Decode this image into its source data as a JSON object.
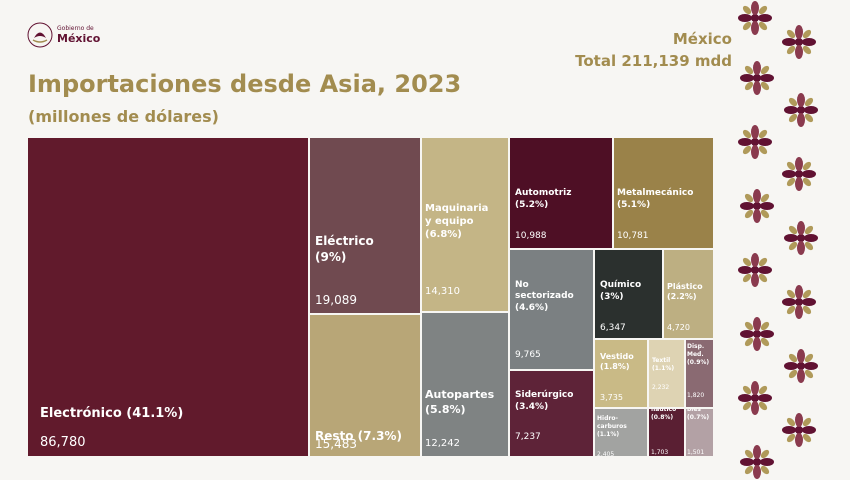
{
  "header": {
    "logo_small": "Gobierno de",
    "logo_big": "México",
    "title": "Importaciones desde Asia, 2023",
    "subtitle": "(millones de dólares)",
    "region": "México",
    "total": "Total 211,139 mdd"
  },
  "chart_data": {
    "type": "treemap",
    "title": "Importaciones desde Asia, 2023",
    "subtitle": "(millones de dólares)",
    "total": 211139,
    "items": [
      {
        "label": "Electrónico (41.1%)",
        "value": 86780,
        "value_text": "86,780",
        "color": "#611a2c"
      },
      {
        "label": "Eléctrico\n(9%)",
        "value": 19089,
        "value_text": "19,089",
        "color": "#704a50"
      },
      {
        "label": "Resto (7.3%)",
        "value": 15483,
        "value_text": "15,483",
        "color": "#b8a677"
      },
      {
        "label": "Maquinaria\ny equipo\n(6.8%)",
        "value": 14310,
        "value_text": "14,310",
        "color": "#c4b586"
      },
      {
        "label": "Autopartes\n(5.8%)",
        "value": 12242,
        "value_text": "12,242",
        "color": "#7f8383"
      },
      {
        "label": "Automotriz\n(5.2%)",
        "value": 10988,
        "value_text": "10,988",
        "color": "#4e0f25"
      },
      {
        "label": "Metalmecánico\n(5.1%)",
        "value": 10781,
        "value_text": "10,781",
        "color": "#9a8249"
      },
      {
        "label": "No\nsectorizado\n(4.6%)",
        "value": 9765,
        "value_text": "9,765",
        "color": "#7b8082"
      },
      {
        "label": "Siderúrgico\n(3.4%)",
        "value": 7237,
        "value_text": "7,237",
        "color": "#5e2338"
      },
      {
        "label": "Químico\n(3%)",
        "value": 6347,
        "value_text": "6,347",
        "color": "#2b302e"
      },
      {
        "label": "Plástico\n(2.2%)",
        "value": 4720,
        "value_text": "4,720",
        "color": "#bdaf82"
      },
      {
        "label": "Vestido\n(1.8%)",
        "value": 3735,
        "value_text": "3,735",
        "color": "#c9ba86"
      },
      {
        "label": "Textil\n(1.1%)",
        "value": 2232,
        "value_text": "2,232",
        "color": "#ded3b3"
      },
      {
        "label": "Disp.\nMed.\n(0.9%)",
        "value": 1820,
        "value_text": "1,820",
        "color": "#8a6a72"
      },
      {
        "label": "Hidro-\ncarburos\n(1.1%)",
        "value": 2405,
        "value_text": "2,405",
        "color": "#a2a3a1"
      },
      {
        "label": "Aero-\nnáutico\n(0.8%)",
        "value": 1703,
        "value_text": "1,703",
        "color": "#5a1f33"
      },
      {
        "label": "Mue-\nbles\n(0.7%)",
        "value": 1501,
        "value_text": "1,501",
        "color": "#b3a1a5"
      }
    ]
  }
}
